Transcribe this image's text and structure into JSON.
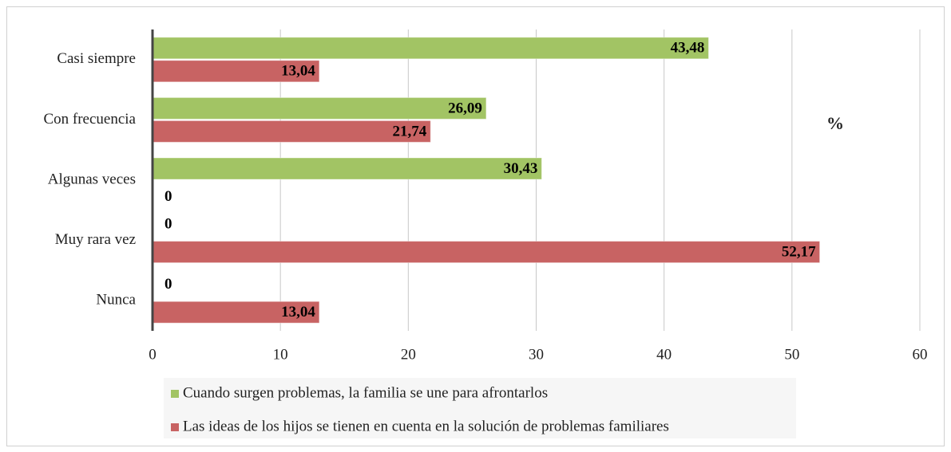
{
  "chart_data": {
    "type": "hbar",
    "annotation": "%",
    "categories": [
      "Casi siempre",
      "Con frecuencia",
      "Algunas veces",
      "Muy rara vez",
      "Nunca"
    ],
    "series": [
      {
        "name": "Cuando surgen problemas, la familia se une para afrontarlos",
        "color": "#a2c464",
        "values": [
          43.48,
          26.09,
          30.43,
          0,
          0
        ],
        "value_labels": [
          "43,48",
          "26,09",
          "30,43",
          "0",
          "0"
        ]
      },
      {
        "name": "Las ideas de los hijos se tienen en cuenta en la solución de problemas familiares",
        "color": "#c86363",
        "values": [
          13.04,
          21.74,
          0,
          52.17,
          13.04
        ],
        "value_labels": [
          "13,04",
          "21,74",
          "0",
          "52,17",
          "13,04"
        ]
      }
    ],
    "xlim": [
      0,
      60
    ],
    "xticks": [
      0,
      10,
      20,
      30,
      40,
      50,
      60
    ],
    "grid": true
  }
}
